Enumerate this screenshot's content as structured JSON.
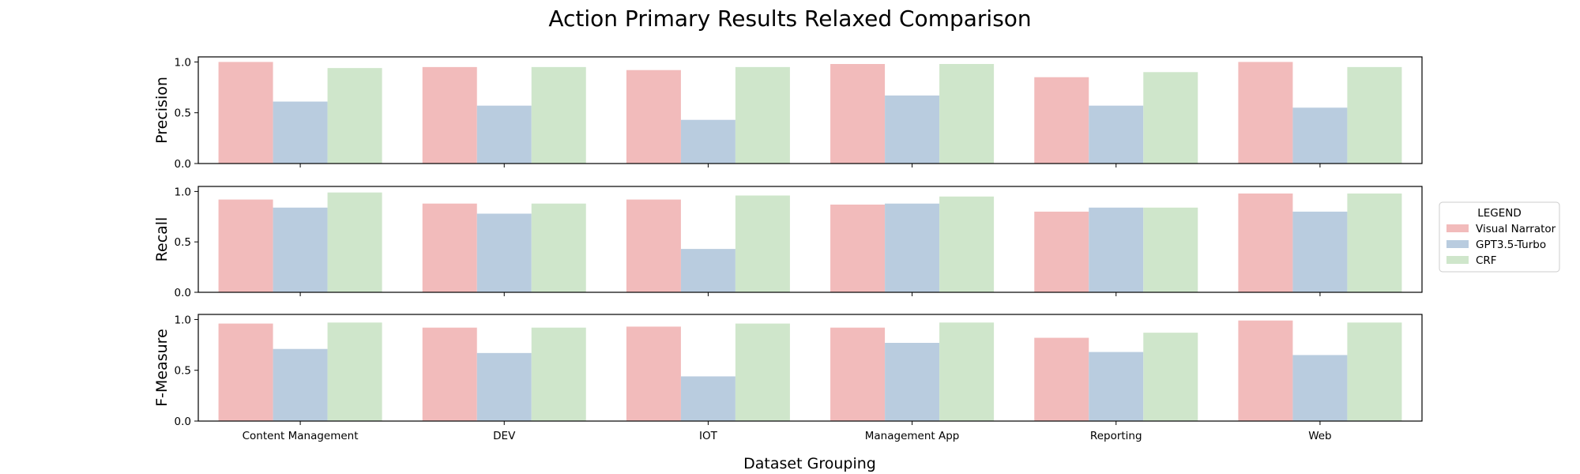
{
  "chart_data": {
    "type": "bar",
    "title": "Action Primary Results Relaxed Comparison",
    "xlabel": "Dataset Grouping",
    "categories": [
      "Content Management",
      "DEV",
      "IOT",
      "Management App",
      "Reporting",
      "Web"
    ],
    "legend": {
      "title": "LEGEND",
      "placement": "right",
      "entries": [
        "Visual Narrator",
        "GPT3.5-Turbo",
        "CRF"
      ]
    },
    "colors": [
      "#f2bbbb",
      "#b9ccdf",
      "#cfe6cb"
    ],
    "ylim": [
      0,
      1.05
    ],
    "yticks": [
      "0.0",
      "0.5",
      "1.0"
    ],
    "grid": false,
    "subplots": [
      {
        "ylabel": "Precision",
        "series": [
          {
            "name": "Visual Narrator",
            "values": [
              1.0,
              0.95,
              0.92,
              0.98,
              0.85,
              1.0
            ]
          },
          {
            "name": "GPT3.5-Turbo",
            "values": [
              0.61,
              0.57,
              0.43,
              0.67,
              0.57,
              0.55
            ]
          },
          {
            "name": "CRF",
            "values": [
              0.94,
              0.95,
              0.95,
              0.98,
              0.9,
              0.95
            ]
          }
        ]
      },
      {
        "ylabel": "Recall",
        "series": [
          {
            "name": "Visual Narrator",
            "values": [
              0.92,
              0.88,
              0.92,
              0.87,
              0.8,
              0.98
            ]
          },
          {
            "name": "GPT3.5-Turbo",
            "values": [
              0.84,
              0.78,
              0.43,
              0.88,
              0.84,
              0.8
            ]
          },
          {
            "name": "CRF",
            "values": [
              0.99,
              0.88,
              0.96,
              0.95,
              0.84,
              0.98
            ]
          }
        ]
      },
      {
        "ylabel": "F-Measure",
        "series": [
          {
            "name": "Visual Narrator",
            "values": [
              0.96,
              0.92,
              0.93,
              0.92,
              0.82,
              0.99
            ]
          },
          {
            "name": "GPT3.5-Turbo",
            "values": [
              0.71,
              0.67,
              0.44,
              0.77,
              0.68,
              0.65
            ]
          },
          {
            "name": "CRF",
            "values": [
              0.97,
              0.92,
              0.96,
              0.97,
              0.87,
              0.97
            ]
          }
        ]
      }
    ]
  }
}
